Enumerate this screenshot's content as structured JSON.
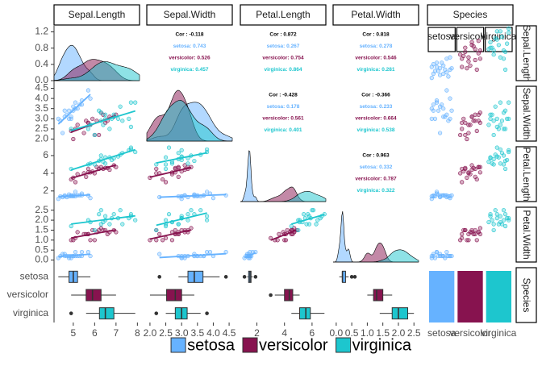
{
  "chart_data": {
    "type": "pairs",
    "variables": [
      "Sepal.Length",
      "Sepal.Width",
      "Petal.Length",
      "Petal.Width",
      "Species"
    ],
    "axes": [
      {
        "lim": [
          4.1,
          8.1
        ],
        "ticks": [
          5,
          6,
          7,
          8
        ]
      },
      {
        "lim": [
          1.9,
          4.6
        ],
        "ticks": [
          {
            "value": 2,
            "label": "2.0"
          },
          {
            "value": 2.5,
            "label": "2.5"
          },
          {
            "value": 3,
            "label": "3.0"
          },
          {
            "value": 3.5,
            "label": "3.5"
          },
          {
            "value": 4,
            "label": "4.0"
          },
          {
            "value": 4.5,
            "label": "4.5"
          }
        ]
      },
      {
        "lim": [
          0.8,
          7.0
        ],
        "ticks": [
          2,
          4,
          6
        ]
      },
      {
        "lim": [
          -0.1,
          2.65
        ],
        "ticks": [
          {
            "value": 0,
            "label": "0.0"
          },
          {
            "value": 0.5,
            "label": "0.5"
          },
          {
            "value": 1,
            "label": "1.0"
          },
          {
            "value": 1.5,
            "label": "1.5"
          },
          {
            "value": 2,
            "label": "2.0"
          },
          {
            "value": 2.5,
            "label": "2.5"
          }
        ]
      }
    ],
    "density_ylim": [
      0,
      1.35
    ],
    "density_yticks": [
      {
        "value": 0,
        "label": "0.0"
      },
      0.4,
      0.8,
      1.2
    ],
    "count_ylim": [
      0,
      50
    ],
    "legend": "bottom",
    "species": [
      {
        "name": "setosa",
        "color": "#66b2ff",
        "count": 50,
        "points": [
          [
            5.1,
            3.5,
            1.4,
            0.2
          ],
          [
            4.9,
            3.0,
            1.4,
            0.2
          ],
          [
            4.7,
            3.2,
            1.3,
            0.2
          ],
          [
            4.6,
            3.1,
            1.5,
            0.2
          ],
          [
            5.0,
            3.6,
            1.4,
            0.2
          ],
          [
            5.4,
            3.9,
            1.7,
            0.4
          ],
          [
            4.6,
            3.4,
            1.4,
            0.3
          ],
          [
            5.0,
            3.4,
            1.5,
            0.2
          ],
          [
            4.4,
            2.9,
            1.4,
            0.2
          ],
          [
            4.9,
            3.1,
            1.5,
            0.1
          ],
          [
            5.4,
            3.7,
            1.5,
            0.2
          ],
          [
            4.8,
            3.4,
            1.6,
            0.2
          ],
          [
            4.8,
            3.0,
            1.4,
            0.1
          ],
          [
            4.3,
            3.0,
            1.1,
            0.1
          ],
          [
            5.8,
            4.0,
            1.2,
            0.2
          ],
          [
            5.7,
            4.4,
            1.5,
            0.4
          ],
          [
            5.2,
            3.5,
            1.5,
            0.2
          ],
          [
            4.5,
            2.3,
            1.3,
            0.3
          ],
          [
            5.1,
            3.8,
            1.9,
            0.4
          ],
          [
            5.3,
            3.7,
            1.5,
            0.2
          ]
        ],
        "boxes": [
          [
            4.3,
            4.8,
            5.0,
            5.2,
            5.8
          ],
          [
            2.9,
            3.2,
            3.4,
            3.675,
            4.2
          ],
          [
            1.3,
            1.4,
            1.5,
            1.575,
            1.7
          ],
          [
            0.1,
            0.2,
            0.2,
            0.3,
            0.4
          ]
        ],
        "outliers": [
          [],
          [
            2.3,
            4.4
          ],
          [
            1.1,
            1.9
          ],
          [
            0.5,
            0.6
          ]
        ]
      },
      {
        "name": "versicolor",
        "color": "#87134f",
        "count": 50,
        "points": [
          [
            7.0,
            3.2,
            4.7,
            1.4
          ],
          [
            6.4,
            3.2,
            4.5,
            1.5
          ],
          [
            6.9,
            3.1,
            4.9,
            1.5
          ],
          [
            5.5,
            2.3,
            4.0,
            1.3
          ],
          [
            6.5,
            2.8,
            4.6,
            1.5
          ],
          [
            5.7,
            2.8,
            4.5,
            1.3
          ],
          [
            6.3,
            3.3,
            4.7,
            1.6
          ],
          [
            4.9,
            2.4,
            3.3,
            1.0
          ],
          [
            6.6,
            2.9,
            4.6,
            1.3
          ],
          [
            5.2,
            2.7,
            3.9,
            1.4
          ],
          [
            5.0,
            2.0,
            3.5,
            1.0
          ],
          [
            5.9,
            3.0,
            4.2,
            1.5
          ],
          [
            6.0,
            2.2,
            4.0,
            1.0
          ],
          [
            6.1,
            2.9,
            4.7,
            1.4
          ],
          [
            5.6,
            2.9,
            3.6,
            1.3
          ],
          [
            6.7,
            3.1,
            4.4,
            1.4
          ],
          [
            5.8,
            2.7,
            4.1,
            1.0
          ],
          [
            6.2,
            2.2,
            4.5,
            1.5
          ],
          [
            5.1,
            2.5,
            3.0,
            1.1
          ],
          [
            5.7,
            2.8,
            4.1,
            1.3
          ]
        ],
        "boxes": [
          [
            4.9,
            5.6,
            5.9,
            6.3,
            7.0
          ],
          [
            2.0,
            2.525,
            2.8,
            3.0,
            3.4
          ],
          [
            3.3,
            4.0,
            4.35,
            4.6,
            5.1
          ],
          [
            1.0,
            1.2,
            1.3,
            1.5,
            1.8
          ]
        ],
        "outliers": [
          [],
          [],
          [
            3.0
          ],
          []
        ]
      },
      {
        "name": "virginica",
        "color": "#1dc6ce",
        "count": 50,
        "points": [
          [
            6.3,
            3.3,
            6.0,
            2.5
          ],
          [
            5.8,
            2.7,
            5.1,
            1.9
          ],
          [
            7.1,
            3.0,
            5.9,
            2.1
          ],
          [
            6.3,
            2.9,
            5.6,
            1.8
          ],
          [
            6.5,
            3.0,
            5.8,
            2.2
          ],
          [
            7.6,
            3.0,
            6.6,
            2.1
          ],
          [
            4.9,
            2.5,
            4.5,
            1.7
          ],
          [
            7.3,
            2.9,
            6.3,
            1.8
          ],
          [
            6.7,
            2.5,
            5.8,
            1.8
          ],
          [
            7.2,
            3.6,
            6.1,
            2.5
          ],
          [
            6.5,
            3.2,
            5.1,
            2.0
          ],
          [
            6.4,
            2.7,
            5.3,
            1.9
          ],
          [
            6.8,
            3.0,
            5.5,
            2.1
          ],
          [
            5.7,
            2.5,
            5.0,
            2.0
          ],
          [
            7.7,
            3.8,
            6.7,
            2.2
          ],
          [
            7.7,
            2.6,
            6.9,
            2.3
          ],
          [
            6.0,
            2.2,
            5.0,
            1.5
          ],
          [
            6.9,
            3.2,
            5.7,
            2.3
          ],
          [
            7.9,
            3.8,
            6.4,
            2.0
          ],
          [
            6.2,
            3.4,
            5.4,
            2.3
          ]
        ],
        "boxes": [
          [
            5.6,
            6.225,
            6.5,
            6.9,
            7.9
          ],
          [
            2.5,
            2.8,
            3.0,
            3.175,
            3.6
          ],
          [
            4.5,
            5.1,
            5.55,
            5.875,
            6.9
          ],
          [
            1.4,
            1.8,
            2.0,
            2.3,
            2.5
          ]
        ],
        "outliers": [
          [
            4.9
          ],
          [
            2.2,
            3.8
          ],
          [],
          []
        ]
      }
    ],
    "correlations": [
      {
        "overall": "Cor : -0.118",
        "groups": [
          "setosa: 0.743",
          "versicolor: 0.526",
          "virginica: 0.457"
        ]
      },
      {
        "overall": "Cor : 0.872",
        "groups": [
          "setosa: 0.267",
          "versicolor: 0.754",
          "virginica: 0.864"
        ]
      },
      {
        "overall": "Cor : 0.818",
        "groups": [
          "setosa: 0.278",
          "versicolor: 0.546",
          "virginica: 0.281"
        ]
      },
      {
        "overall": "Cor : -0.428",
        "groups": [
          "setosa: 0.178",
          "versicolor: 0.561",
          "virginica: 0.401"
        ]
      },
      {
        "overall": "Cor : -0.366",
        "groups": [
          "setosa: 0.233",
          "versicolor: 0.664",
          "virginica: 0.538"
        ]
      },
      {
        "overall": "Cor : 0.963",
        "groups": [
          "setosa: 0.332",
          "versicolor: 0.787",
          "virginica: 0.322"
        ]
      }
    ]
  }
}
